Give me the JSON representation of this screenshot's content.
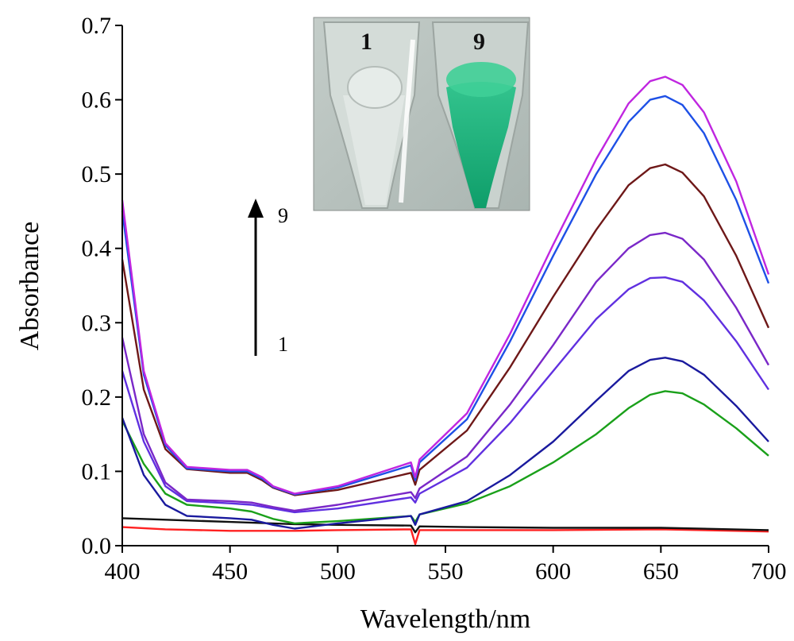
{
  "chart_data": {
    "type": "line",
    "title": "",
    "xlabel": "Wavelength/nm",
    "ylabel": "Absorbance",
    "xlim": [
      400,
      700
    ],
    "ylim": [
      0,
      0.7
    ],
    "x_ticks": [
      400,
      450,
      500,
      550,
      600,
      650,
      700
    ],
    "y_ticks": [
      0.0,
      0.1,
      0.2,
      0.3,
      0.4,
      0.5,
      0.6,
      0.7
    ],
    "y_tick_labels": [
      "0.0",
      "0.1",
      "0.2",
      "0.3",
      "0.4",
      "0.5",
      "0.6",
      "0.7"
    ],
    "grid": false,
    "legend": "none",
    "series": [
      {
        "color": "#ff2020",
        "points": [
          [
            400,
            0.025
          ],
          [
            420,
            0.022
          ],
          [
            450,
            0.02
          ],
          [
            480,
            0.02
          ],
          [
            500,
            0.021
          ],
          [
            534,
            0.022
          ],
          [
            536,
            0.002
          ],
          [
            538,
            0.021
          ],
          [
            560,
            0.021
          ],
          [
            600,
            0.021
          ],
          [
            650,
            0.022
          ],
          [
            700,
            0.019
          ]
        ]
      },
      {
        "color": "#111111",
        "points": [
          [
            400,
            0.037
          ],
          [
            420,
            0.035
          ],
          [
            450,
            0.032
          ],
          [
            480,
            0.029
          ],
          [
            500,
            0.028
          ],
          [
            534,
            0.027
          ],
          [
            536,
            0.018
          ],
          [
            538,
            0.026
          ],
          [
            560,
            0.025
          ],
          [
            600,
            0.024
          ],
          [
            650,
            0.024
          ],
          [
            700,
            0.021
          ]
        ]
      },
      {
        "color": "#1aa01a",
        "points": [
          [
            400,
            0.168
          ],
          [
            410,
            0.11
          ],
          [
            420,
            0.07
          ],
          [
            430,
            0.055
          ],
          [
            450,
            0.05
          ],
          [
            460,
            0.046
          ],
          [
            470,
            0.036
          ],
          [
            480,
            0.03
          ],
          [
            500,
            0.033
          ],
          [
            534,
            0.04
          ],
          [
            536,
            0.032
          ],
          [
            538,
            0.042
          ],
          [
            560,
            0.057
          ],
          [
            580,
            0.08
          ],
          [
            600,
            0.112
          ],
          [
            620,
            0.15
          ],
          [
            635,
            0.185
          ],
          [
            645,
            0.203
          ],
          [
            652,
            0.208
          ],
          [
            660,
            0.205
          ],
          [
            670,
            0.19
          ],
          [
            685,
            0.158
          ],
          [
            700,
            0.121
          ]
        ]
      },
      {
        "color": "#1a1a9e",
        "points": [
          [
            400,
            0.172
          ],
          [
            410,
            0.095
          ],
          [
            420,
            0.055
          ],
          [
            430,
            0.04
          ],
          [
            450,
            0.037
          ],
          [
            460,
            0.035
          ],
          [
            470,
            0.028
          ],
          [
            480,
            0.023
          ],
          [
            500,
            0.03
          ],
          [
            534,
            0.04
          ],
          [
            536,
            0.028
          ],
          [
            538,
            0.042
          ],
          [
            560,
            0.06
          ],
          [
            580,
            0.095
          ],
          [
            600,
            0.14
          ],
          [
            620,
            0.195
          ],
          [
            635,
            0.235
          ],
          [
            645,
            0.25
          ],
          [
            652,
            0.253
          ],
          [
            660,
            0.248
          ],
          [
            670,
            0.23
          ],
          [
            685,
            0.188
          ],
          [
            700,
            0.14
          ]
        ]
      },
      {
        "color": "#6030e0",
        "points": [
          [
            400,
            0.235
          ],
          [
            410,
            0.14
          ],
          [
            420,
            0.08
          ],
          [
            430,
            0.06
          ],
          [
            450,
            0.057
          ],
          [
            460,
            0.055
          ],
          [
            470,
            0.05
          ],
          [
            480,
            0.045
          ],
          [
            500,
            0.05
          ],
          [
            534,
            0.065
          ],
          [
            536,
            0.058
          ],
          [
            538,
            0.07
          ],
          [
            560,
            0.105
          ],
          [
            580,
            0.165
          ],
          [
            600,
            0.235
          ],
          [
            620,
            0.305
          ],
          [
            635,
            0.345
          ],
          [
            645,
            0.36
          ],
          [
            652,
            0.361
          ],
          [
            660,
            0.355
          ],
          [
            670,
            0.33
          ],
          [
            685,
            0.275
          ],
          [
            700,
            0.21
          ]
        ]
      },
      {
        "color": "#7a28c8",
        "points": [
          [
            400,
            0.28
          ],
          [
            410,
            0.15
          ],
          [
            420,
            0.085
          ],
          [
            430,
            0.062
          ],
          [
            450,
            0.06
          ],
          [
            460,
            0.058
          ],
          [
            470,
            0.052
          ],
          [
            480,
            0.047
          ],
          [
            500,
            0.055
          ],
          [
            534,
            0.072
          ],
          [
            536,
            0.064
          ],
          [
            538,
            0.077
          ],
          [
            560,
            0.12
          ],
          [
            580,
            0.19
          ],
          [
            600,
            0.27
          ],
          [
            620,
            0.355
          ],
          [
            635,
            0.4
          ],
          [
            645,
            0.418
          ],
          [
            652,
            0.421
          ],
          [
            660,
            0.413
          ],
          [
            670,
            0.385
          ],
          [
            685,
            0.32
          ],
          [
            700,
            0.243
          ]
        ]
      },
      {
        "color": "#6e1818",
        "points": [
          [
            400,
            0.385
          ],
          [
            410,
            0.21
          ],
          [
            420,
            0.13
          ],
          [
            430,
            0.103
          ],
          [
            450,
            0.098
          ],
          [
            458,
            0.098
          ],
          [
            465,
            0.088
          ],
          [
            470,
            0.078
          ],
          [
            480,
            0.068
          ],
          [
            500,
            0.075
          ],
          [
            534,
            0.098
          ],
          [
            536,
            0.082
          ],
          [
            538,
            0.102
          ],
          [
            560,
            0.155
          ],
          [
            580,
            0.24
          ],
          [
            600,
            0.335
          ],
          [
            620,
            0.425
          ],
          [
            635,
            0.485
          ],
          [
            645,
            0.508
          ],
          [
            652,
            0.513
          ],
          [
            660,
            0.502
          ],
          [
            670,
            0.47
          ],
          [
            685,
            0.39
          ],
          [
            700,
            0.293
          ]
        ]
      },
      {
        "color": "#1e50e6",
        "points": [
          [
            400,
            0.45
          ],
          [
            410,
            0.23
          ],
          [
            420,
            0.135
          ],
          [
            430,
            0.104
          ],
          [
            450,
            0.1
          ],
          [
            458,
            0.1
          ],
          [
            465,
            0.09
          ],
          [
            470,
            0.079
          ],
          [
            480,
            0.069
          ],
          [
            500,
            0.078
          ],
          [
            534,
            0.108
          ],
          [
            536,
            0.088
          ],
          [
            538,
            0.112
          ],
          [
            560,
            0.17
          ],
          [
            580,
            0.275
          ],
          [
            600,
            0.39
          ],
          [
            620,
            0.5
          ],
          [
            635,
            0.57
          ],
          [
            645,
            0.6
          ],
          [
            652,
            0.605
          ],
          [
            660,
            0.593
          ],
          [
            670,
            0.555
          ],
          [
            685,
            0.465
          ],
          [
            700,
            0.353
          ]
        ]
      },
      {
        "color": "#c026e0",
        "points": [
          [
            400,
            0.465
          ],
          [
            410,
            0.235
          ],
          [
            420,
            0.138
          ],
          [
            430,
            0.106
          ],
          [
            450,
            0.102
          ],
          [
            458,
            0.102
          ],
          [
            465,
            0.092
          ],
          [
            470,
            0.08
          ],
          [
            480,
            0.07
          ],
          [
            500,
            0.08
          ],
          [
            534,
            0.112
          ],
          [
            536,
            0.092
          ],
          [
            538,
            0.116
          ],
          [
            560,
            0.178
          ],
          [
            580,
            0.285
          ],
          [
            600,
            0.405
          ],
          [
            620,
            0.52
          ],
          [
            635,
            0.595
          ],
          [
            645,
            0.625
          ],
          [
            652,
            0.631
          ],
          [
            660,
            0.62
          ],
          [
            670,
            0.583
          ],
          [
            685,
            0.49
          ],
          [
            700,
            0.365
          ]
        ]
      }
    ],
    "annotations": {
      "arrow_start_label": "1",
      "arrow_end_label": "9",
      "inset": {
        "tubes": [
          {
            "label": "1",
            "liquid_color": "#d6ddd8"
          },
          {
            "label": "9",
            "liquid_color": "#19b37c"
          }
        ]
      }
    }
  }
}
